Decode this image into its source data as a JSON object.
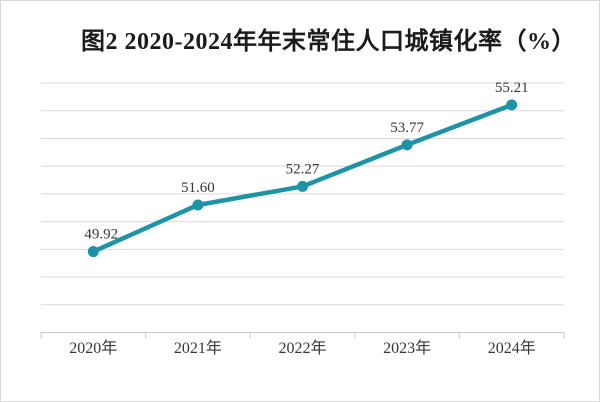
{
  "page": {
    "background": "#ffffff",
    "frame_border_color": "#d7d7d7"
  },
  "chart_data": {
    "type": "line",
    "title": "图2  2020-2024年年末常住人口城镇化率（%）",
    "categories": [
      "2020年",
      "2021年",
      "2022年",
      "2023年",
      "2024年"
    ],
    "values": [
      49.92,
      51.6,
      52.27,
      53.77,
      55.21
    ],
    "data_labels": [
      "49.92",
      "51.60",
      "52.27",
      "53.77",
      "55.21"
    ],
    "xlabel": "",
    "ylabel": "",
    "ylim": [
      47,
      56
    ],
    "y_major_unit": 1,
    "y_axis_labels_visible": false,
    "gridlines": "horizontal",
    "legend": "none",
    "colors": {
      "line": "#1e93a6",
      "marker": "#1e93a6",
      "gridline": "#d9d9d9",
      "axis": "#c9c9c9",
      "data_label_text": "#363636",
      "category_label_text": "#363636",
      "title_text": "#1b1b1b"
    }
  }
}
